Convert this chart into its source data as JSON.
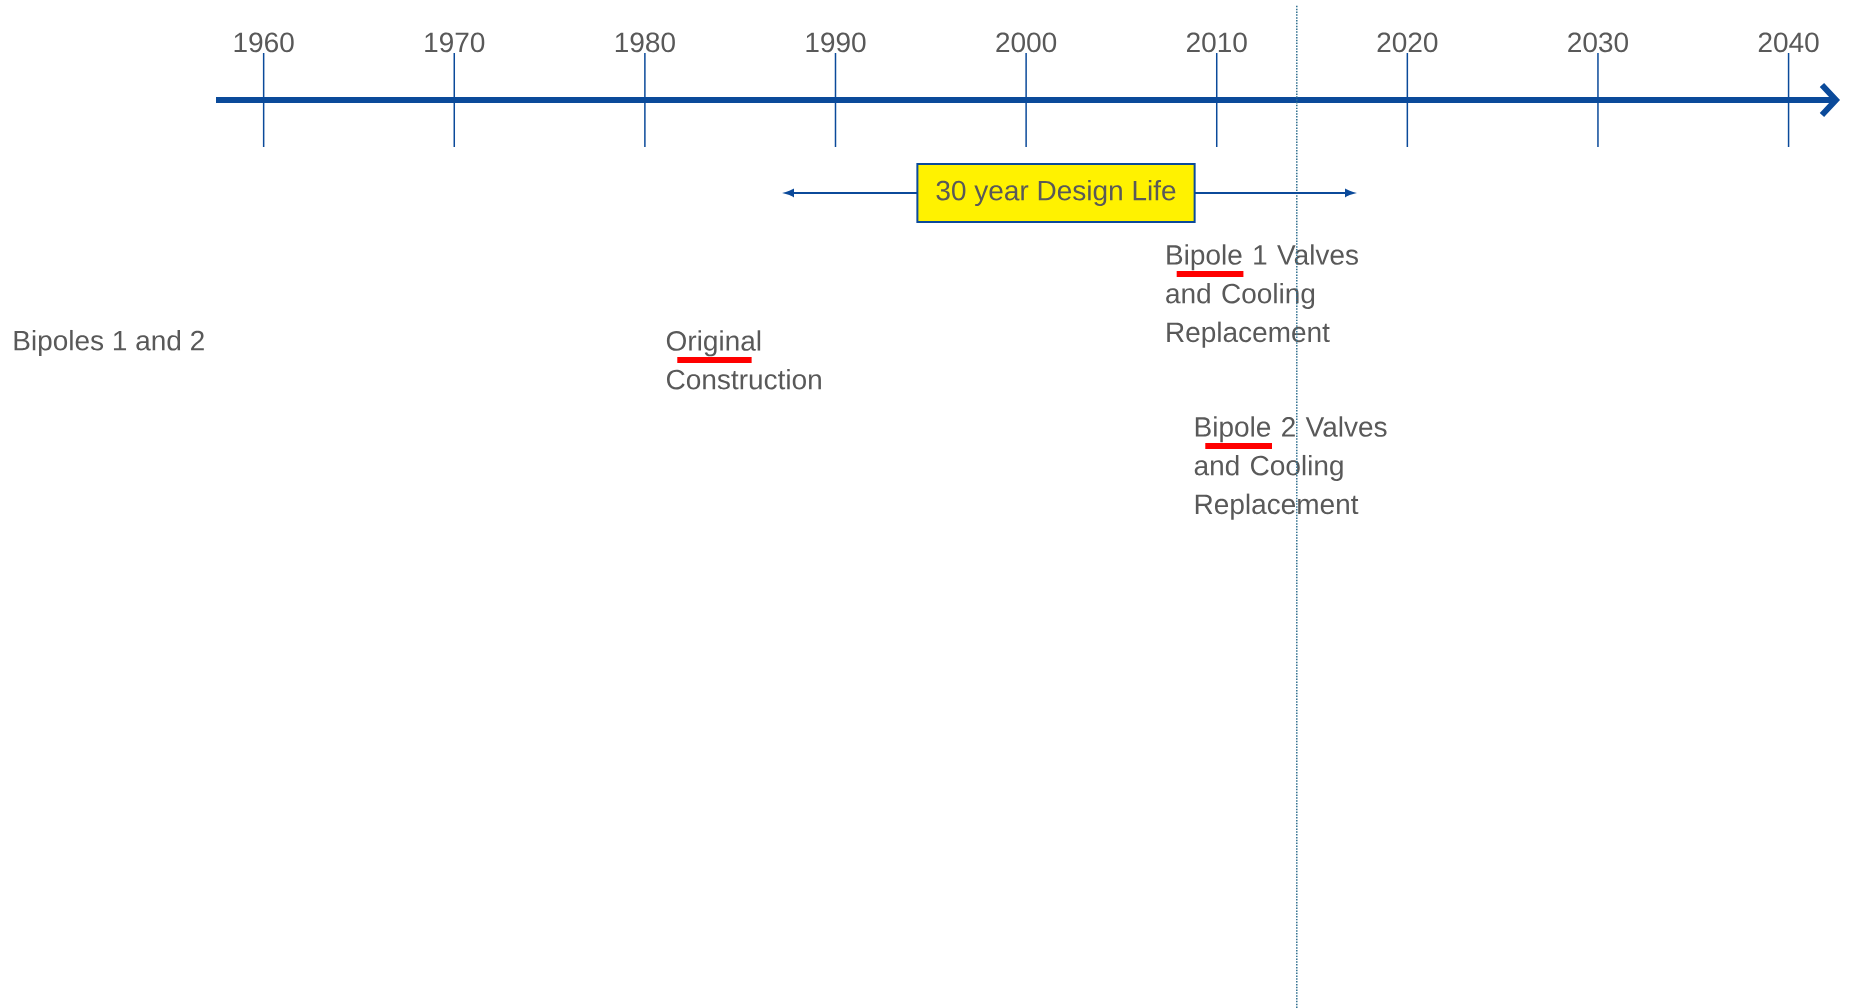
{
  "chart_data": {
    "type": "bar",
    "orientation": "horizontal",
    "categories": [
      null,
      null,
      null
    ],
    "base": [
      2007.9,
      1981.7,
      2009.4
    ],
    "values": [
      3.5,
      3.9,
      3.5
    ],
    "color": "#ff0000",
    "ylabel": "Bipoles 1 and 2",
    "xlim": [
      1957.5,
      2042.7
    ],
    "xticks": [
      1960,
      1970,
      1980,
      1990,
      2000,
      2010,
      2020,
      2030,
      2040
    ],
    "annotations": [
      "Bipole 1 Valves and Cooling Replacement",
      "Original Construction",
      "Bipole 2 Valves and Cooling Replacement",
      "30 year Design Life"
    ],
    "ref_lines": [
      {
        "axis": "x",
        "value": 2014.2,
        "line_style": "dotted",
        "color": "#2e6e8e"
      }
    ]
  }
}
